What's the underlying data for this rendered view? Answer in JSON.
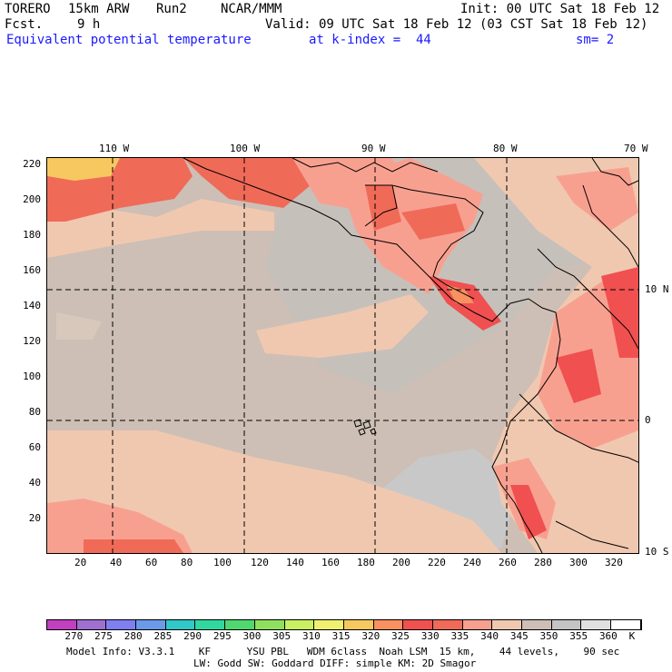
{
  "header": {
    "model": "TORERO",
    "resolution": "15km ARW",
    "run": "Run2",
    "org": "NCAR/MMM",
    "init": "Init: 00 UTC Sat 18 Feb 12",
    "fcst_label": "Fcst.",
    "fcst_value": "9 h",
    "valid": "Valid: 09 UTC Sat 18 Feb 12 (03 CST Sat 18 Feb 12)",
    "field": "Equivalent potential temperature",
    "level": "at k-index =  44",
    "smooth": "sm= 2"
  },
  "map": {
    "lon_labels": [
      "110 W",
      "100 W",
      "90 W",
      "80 W",
      "70 W"
    ],
    "lat_labels": [
      "10 N",
      "0",
      "10 S"
    ],
    "y_ticks": [
      "220",
      "200",
      "180",
      "160",
      "140",
      "120",
      "100",
      "80",
      "60",
      "40",
      "20"
    ],
    "x_ticks": [
      "20",
      "40",
      "60",
      "80",
      "100",
      "120",
      "140",
      "160",
      "180",
      "200",
      "220",
      "240",
      "260",
      "280",
      "300",
      "320"
    ]
  },
  "colorbar": {
    "labels": [
      "270",
      "275",
      "280",
      "285",
      "290",
      "295",
      "300",
      "305",
      "310",
      "315",
      "320",
      "325",
      "330",
      "335",
      "340",
      "345",
      "350",
      "355",
      "360",
      "K"
    ],
    "colors": [
      "#c040c0",
      "#a070d0",
      "#7f7ff0",
      "#6a9ae8",
      "#30c8c8",
      "#30d8a0",
      "#50d870",
      "#90e060",
      "#c8f060",
      "#f0f070",
      "#f8c860",
      "#f89060",
      "#f05050",
      "#f06a58",
      "#f8a090",
      "#f0c8b0",
      "#cdbfb5",
      "#c4c4c4",
      "#e0e0e0",
      "#ffffff"
    ]
  },
  "footer": {
    "line1": "Model Info: V3.3.1    KF      YSU PBL   WDM 6class  Noah LSM  15 km,    44 levels,    90 sec",
    "line2": "LW: Godd SW: Goddard DIFF: simple KM: 2D Smagor"
  }
}
